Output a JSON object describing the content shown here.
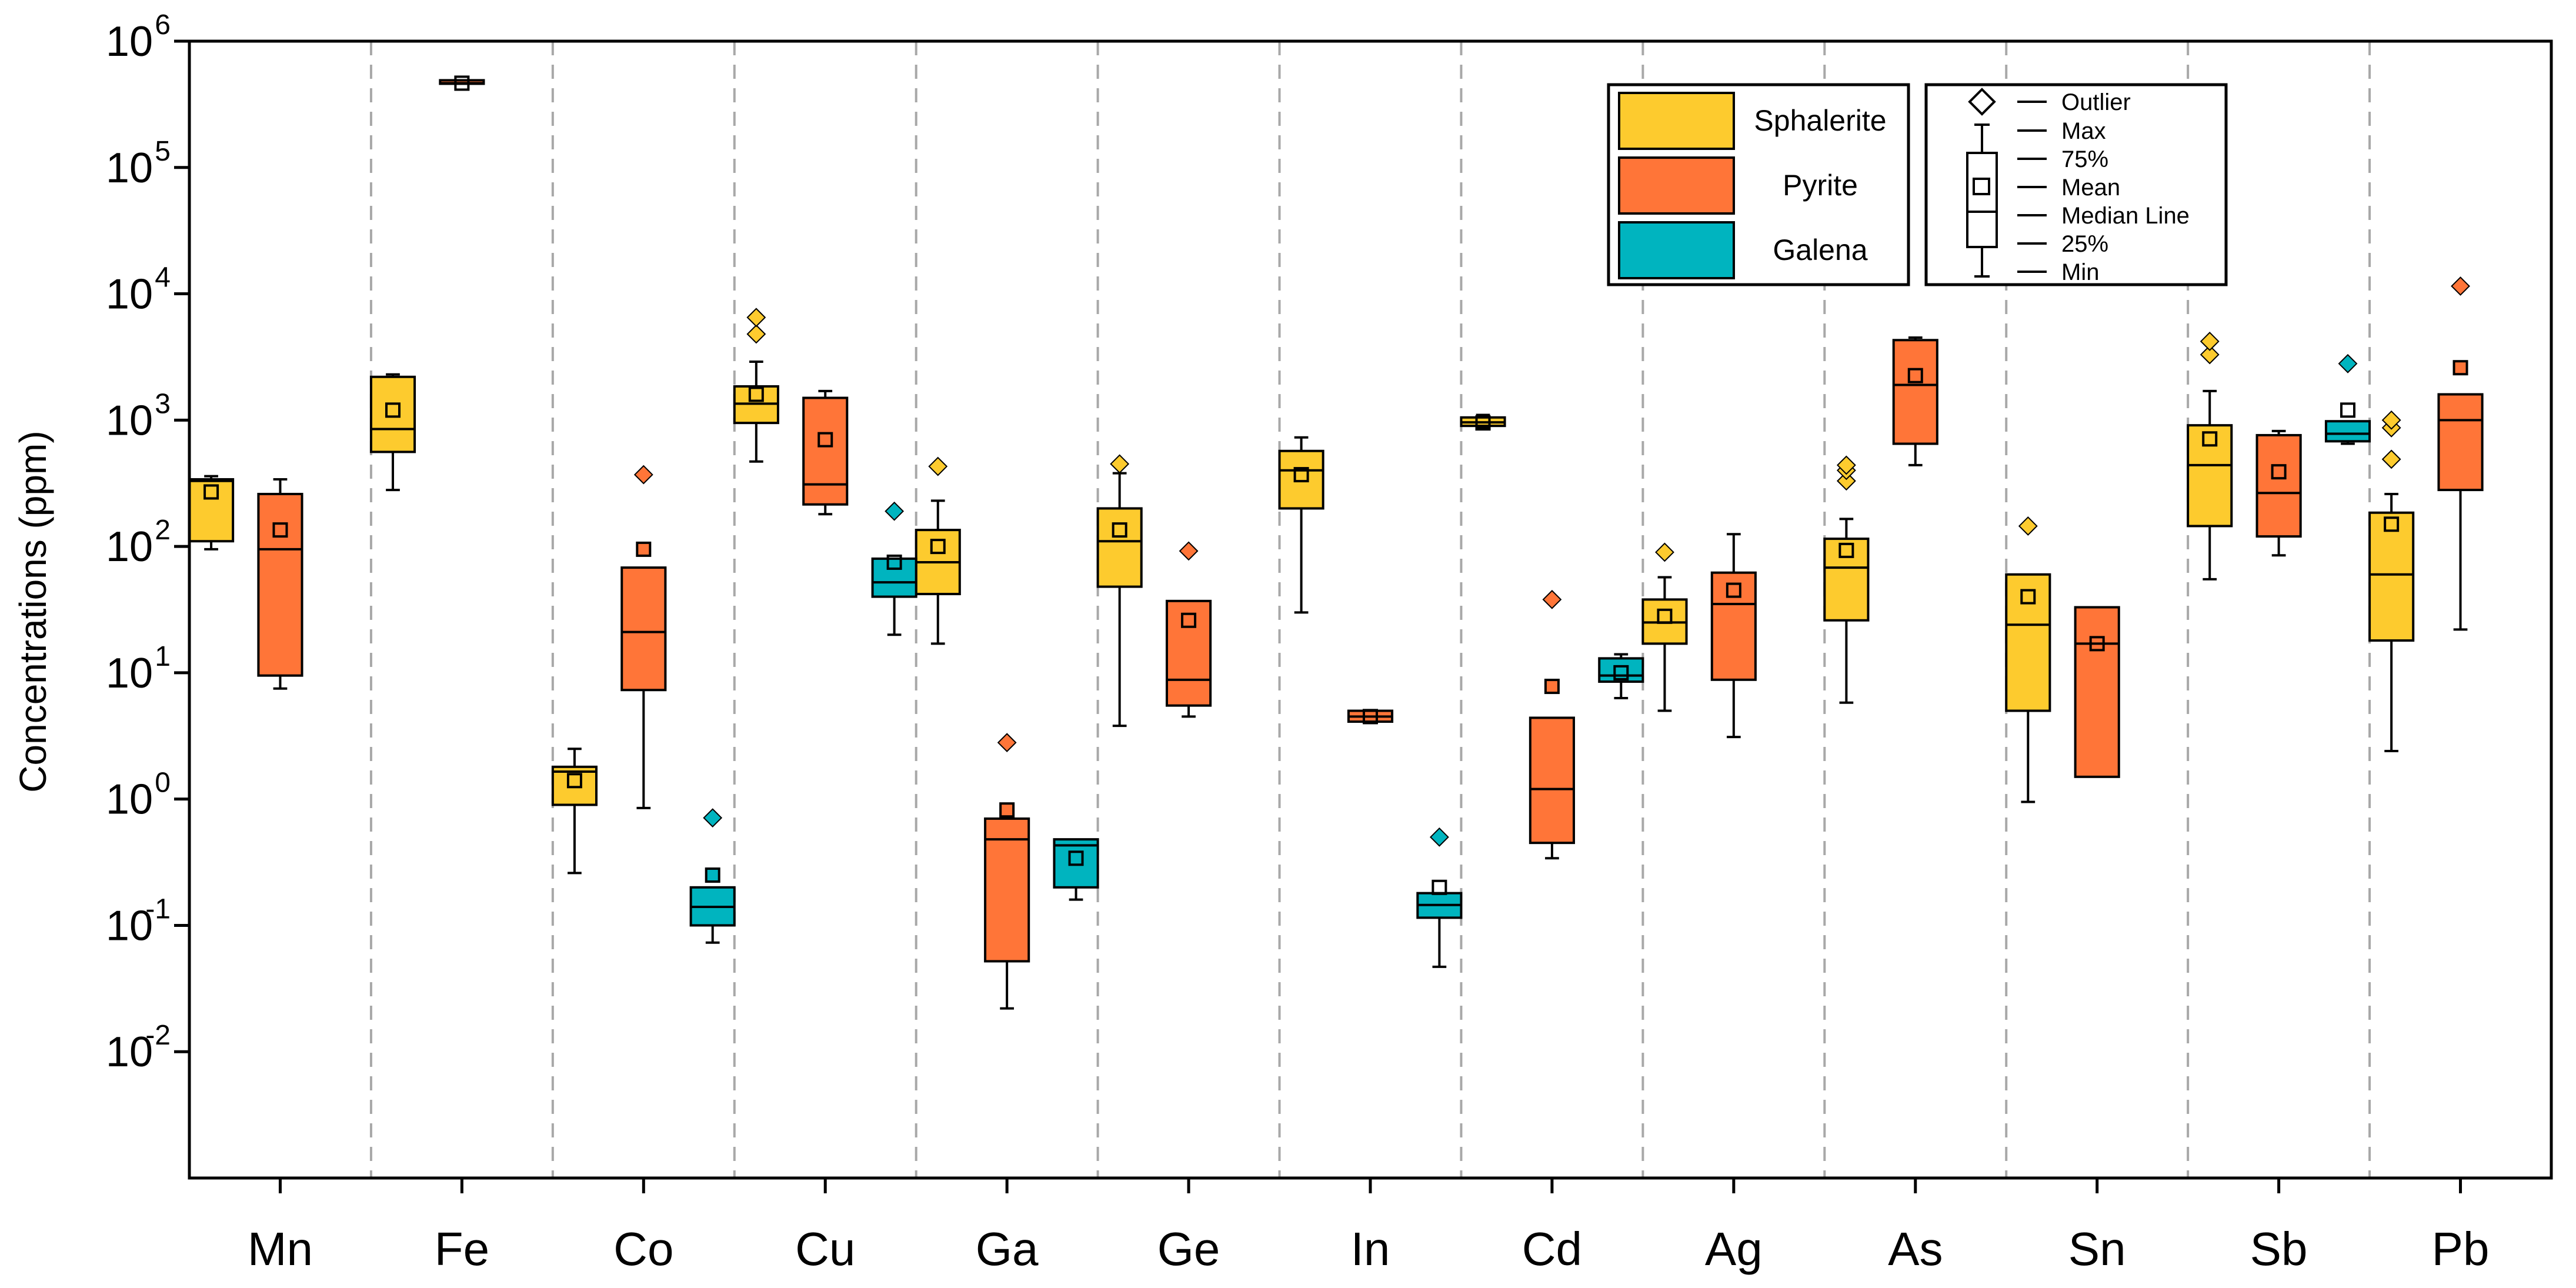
{
  "chart_data": {
    "type": "boxplot",
    "ylabel": "Concentrations (ppm)",
    "yscale": "log",
    "ylim": [
      0.001,
      1000000
    ],
    "yticks": [
      {
        "value": 0.01,
        "base": "10",
        "exp": "-2"
      },
      {
        "value": 0.1,
        "base": "10",
        "exp": "-1"
      },
      {
        "value": 1,
        "base": "10",
        "exp": "0"
      },
      {
        "value": 10,
        "base": "10",
        "exp": "1"
      },
      {
        "value": 100,
        "base": "10",
        "exp": "2"
      },
      {
        "value": 1000,
        "base": "10",
        "exp": "3"
      },
      {
        "value": 10000,
        "base": "10",
        "exp": "4"
      },
      {
        "value": 100000,
        "base": "10",
        "exp": "5"
      },
      {
        "value": 1000000,
        "base": "10",
        "exp": "6"
      }
    ],
    "categories": [
      "Mn",
      "Fe",
      "Co",
      "Cu",
      "Ga",
      "Ge",
      "In",
      "Cd",
      "Ag",
      "As",
      "Sn",
      "Sb",
      "Pb"
    ],
    "series": [
      {
        "name": "Sphalerite",
        "color": "#FDCB2E",
        "boxes": [
          {
            "category": "Mn",
            "min": 95,
            "q1": 110,
            "median": 330,
            "mean": 270,
            "q3": 340,
            "max": 360,
            "outliers": [],
            "extremes": []
          },
          {
            "category": "Fe",
            "min": 280,
            "q1": 560,
            "median": 850,
            "mean": 1200,
            "q3": 2200,
            "max": 2300,
            "outliers": [],
            "extremes": []
          },
          {
            "category": "Co",
            "min": 0.26,
            "q1": 0.9,
            "median": 1.65,
            "mean": 1.4,
            "q3": 1.8,
            "max": 2.5,
            "outliers": [],
            "extremes": []
          },
          {
            "category": "Cu",
            "min": 470,
            "q1": 950,
            "median": 1350,
            "mean": 1600,
            "q3": 1850,
            "max": 2900,
            "outliers": [
              4800,
              6500
            ],
            "extremes": []
          },
          {
            "category": "Ga",
            "min": 17,
            "q1": 42,
            "median": 75,
            "mean": 100,
            "q3": 135,
            "max": 230,
            "outliers": [
              430
            ],
            "extremes": []
          },
          {
            "category": "Ge",
            "min": 3.8,
            "q1": 48,
            "median": 110,
            "mean": 135,
            "q3": 200,
            "max": 380,
            "outliers": [
              450
            ],
            "extremes": []
          },
          {
            "category": "In",
            "min": 30,
            "q1": 200,
            "median": 400,
            "mean": 370,
            "q3": 570,
            "max": 730,
            "outliers": [],
            "extremes": []
          },
          {
            "category": "Cd",
            "min": 870,
            "q1": 900,
            "median": 960,
            "mean": 950,
            "q3": 1050,
            "max": 1100,
            "outliers": [],
            "extremes": []
          },
          {
            "category": "Ag",
            "min": 5,
            "q1": 17,
            "median": 25,
            "mean": 28,
            "q3": 38,
            "max": 57,
            "outliers": [
              90
            ],
            "extremes": []
          },
          {
            "category": "As",
            "min": 5.8,
            "q1": 26,
            "median": 68,
            "mean": 93,
            "q3": 115,
            "max": 165,
            "outliers": [
              330,
              400,
              440
            ],
            "extremes": []
          },
          {
            "category": "Sn",
            "min": 0.95,
            "q1": 5,
            "median": 24,
            "mean": 40,
            "q3": 60,
            "max": 60,
            "outliers": [
              145
            ],
            "extremes": []
          },
          {
            "category": "Sb",
            "min": 55,
            "q1": 145,
            "median": 440,
            "mean": 710,
            "q3": 910,
            "max": 1700,
            "outliers": [
              3300,
              4200
            ],
            "extremes": []
          },
          {
            "category": "Pb",
            "min": 2.4,
            "q1": 18,
            "median": 60,
            "mean": 150,
            "q3": 185,
            "max": 260,
            "outliers": [
              490,
              870,
              1000
            ],
            "extremes": []
          }
        ]
      },
      {
        "name": "Pyrite",
        "color": "#FF7538",
        "boxes": [
          {
            "category": "Mn",
            "min": 7.5,
            "q1": 9.5,
            "median": 95,
            "mean": 135,
            "q3": 260,
            "max": 340,
            "outliers": [],
            "extremes": []
          },
          {
            "category": "Fe",
            "min": 460000,
            "q1": 460000,
            "median": 465000,
            "mean": 465000,
            "q3": 470000,
            "max": 470000,
            "outliers": [],
            "extremes": []
          },
          {
            "category": "Co",
            "min": 0.85,
            "q1": 7.3,
            "median": 21,
            "mean": 95,
            "q3": 68,
            "max": 68,
            "outliers": [
              370
            ],
            "extremes": [
              95
            ]
          },
          {
            "category": "Cu",
            "min": 180,
            "q1": 215,
            "median": 310,
            "mean": 700,
            "q3": 1500,
            "max": 1700,
            "outliers": [],
            "extremes": []
          },
          {
            "category": "Ga",
            "min": 0.022,
            "q1": 0.052,
            "median": 0.48,
            "mean": 0.82,
            "q3": 0.7,
            "max": 0.7,
            "outliers": [
              2.8
            ],
            "extremes": [
              0.82
            ]
          },
          {
            "category": "Ge",
            "min": 4.5,
            "q1": 5.5,
            "median": 8.8,
            "mean": 26,
            "q3": 37,
            "max": 37,
            "outliers": [
              92
            ],
            "extremes": []
          },
          {
            "category": "In",
            "min": 4.0,
            "q1": 4.1,
            "median": 4.5,
            "mean": 4.5,
            "q3": 5.0,
            "max": 5.0,
            "outliers": [],
            "extremes": []
          },
          {
            "category": "Cd",
            "min": 0.34,
            "q1": 0.45,
            "median": 1.2,
            "mean": 7.8,
            "q3": 4.4,
            "max": 4.4,
            "outliers": [
              38
            ],
            "extremes": [
              7.8
            ]
          },
          {
            "category": "Ag",
            "min": 3.1,
            "q1": 8.8,
            "median": 35,
            "mean": 45,
            "q3": 62,
            "max": 125,
            "outliers": [],
            "extremes": []
          },
          {
            "category": "As",
            "min": 440,
            "q1": 650,
            "median": 1900,
            "mean": 2250,
            "q3": 4300,
            "max": 4500,
            "outliers": [],
            "extremes": []
          },
          {
            "category": "Sn",
            "min": 1.5,
            "q1": 1.5,
            "median": 17,
            "mean": 17,
            "q3": 33,
            "max": 33,
            "outliers": [],
            "extremes": []
          },
          {
            "category": "Sb",
            "min": 85,
            "q1": 120,
            "median": 265,
            "mean": 390,
            "q3": 760,
            "max": 820,
            "outliers": [],
            "extremes": []
          },
          {
            "category": "Pb",
            "min": 22,
            "q1": 280,
            "median": 1000,
            "mean": 2600,
            "q3": 1600,
            "max": 1600,
            "outliers": [
              11500
            ],
            "extremes": [
              2600
            ]
          }
        ]
      },
      {
        "name": "Galena",
        "color": "#00B4BF",
        "boxes": [
          {
            "category": "Co",
            "min": 0.073,
            "q1": 0.1,
            "median": 0.14,
            "mean": 0.25,
            "q3": 0.2,
            "max": 0.2,
            "outliers": [
              0.71
            ],
            "extremes": [
              0.25
            ]
          },
          {
            "category": "Cu",
            "min": 20,
            "q1": 40,
            "median": 52,
            "mean": 75,
            "q3": 80,
            "max": 80,
            "outliers": [
              190
            ],
            "extremes": []
          },
          {
            "category": "Ga",
            "min": 0.16,
            "q1": 0.2,
            "median": 0.43,
            "mean": 0.34,
            "q3": 0.48,
            "max": 0.48,
            "outliers": [],
            "extremes": []
          },
          {
            "category": "In",
            "min": 0.047,
            "q1": 0.115,
            "median": 0.145,
            "mean": 0.2,
            "q3": 0.18,
            "max": 0.18,
            "outliers": [
              0.5
            ],
            "extremes": []
          },
          {
            "category": "Cd",
            "min": 6.3,
            "q1": 8.5,
            "median": 9.5,
            "mean": 10,
            "q3": 13,
            "max": 14,
            "outliers": [],
            "extremes": []
          },
          {
            "category": "Sb",
            "min": 650,
            "q1": 680,
            "median": 780,
            "mean": 1200,
            "q3": 980,
            "max": 980,
            "outliers": [
              2800
            ],
            "extremes": []
          }
        ]
      }
    ],
    "legend": {
      "position": "top-right",
      "items": [
        "Sphalerite",
        "Pyrite",
        "Galena"
      ]
    },
    "key": {
      "labels": [
        "Outlier",
        "Max",
        "75%",
        "Mean",
        "Median Line",
        "25%",
        "Min"
      ]
    },
    "grid": false
  }
}
